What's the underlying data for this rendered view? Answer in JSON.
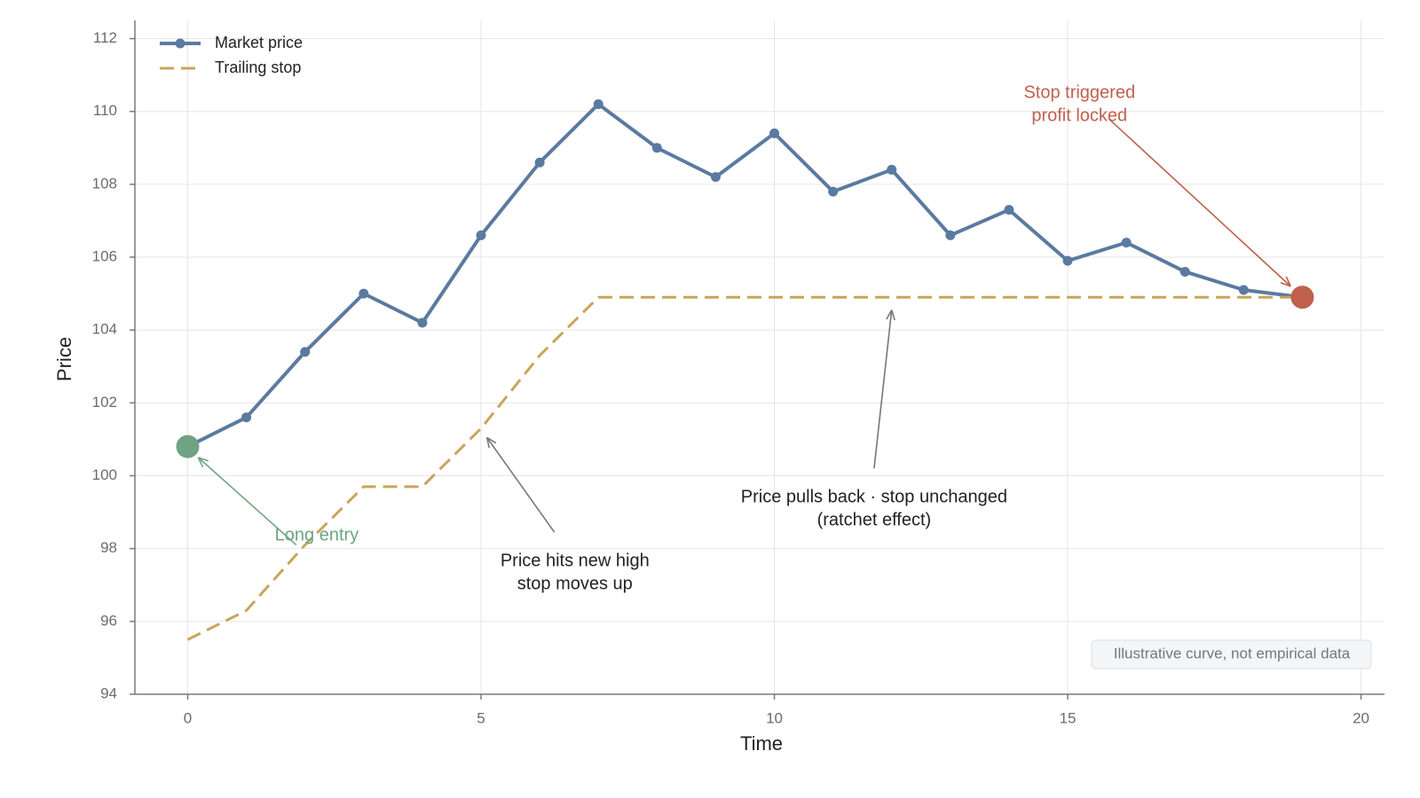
{
  "chart_data": {
    "type": "line",
    "x_label": "Time",
    "y_label": "Price",
    "x": [
      0,
      1,
      2,
      3,
      4,
      5,
      6,
      7,
      8,
      9,
      10,
      11,
      12,
      13,
      14,
      15,
      16,
      17,
      18,
      19
    ],
    "series": [
      {
        "name": "Market price",
        "color": "#5b7aa0",
        "style": "solid-markers",
        "values": [
          100.8,
          101.6,
          103.4,
          105.0,
          104.2,
          106.6,
          108.6,
          110.2,
          109.0,
          108.2,
          109.4,
          107.8,
          108.4,
          106.6,
          107.3,
          105.9,
          106.4,
          105.6,
          105.1,
          104.9
        ]
      },
      {
        "name": "Trailing stop",
        "color": "#c9a55a",
        "style": "dashed",
        "values": [
          95.5,
          96.3,
          98.1,
          99.7,
          99.7,
          101.3,
          103.3,
          104.9,
          104.9,
          104.9,
          104.9,
          104.9,
          104.9,
          104.9,
          104.9,
          104.9,
          104.9,
          104.9,
          104.9,
          104.9
        ]
      }
    ],
    "entry_color": "#6fa383",
    "exit_color": "#c0604d",
    "xlim": [
      -0.9,
      20.4
    ],
    "ylim": [
      94,
      112.5
    ],
    "xticks": [
      0,
      5,
      10,
      15,
      20
    ],
    "yticks": [
      94,
      96,
      98,
      100,
      102,
      104,
      106,
      108,
      110,
      112
    ],
    "grid": true,
    "legend": "upper-left",
    "annotations": [
      {
        "lines": [
          "Long entry"
        ],
        "color": "#6fa383"
      },
      {
        "lines": [
          "Price hits new high",
          "stop moves up"
        ],
        "color": "#222222"
      },
      {
        "lines": [
          "Price pulls back · stop unchanged",
          "(ratchet effect)"
        ],
        "color": "#222222"
      },
      {
        "lines": [
          "Stop triggered",
          "profit locked"
        ],
        "color": "#c0604d"
      }
    ],
    "note": "Illustrative curve, not empirical data"
  }
}
